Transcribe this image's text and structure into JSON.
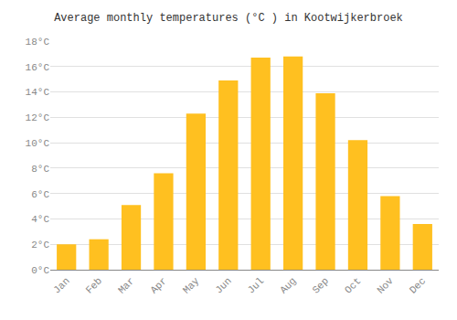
{
  "chart_data": {
    "type": "bar",
    "title": "Average monthly temperatures (°C ) in Kootwijkerbroek",
    "categories": [
      "Jan",
      "Feb",
      "Mar",
      "Apr",
      "May",
      "Jun",
      "Jul",
      "Aug",
      "Sep",
      "Oct",
      "Nov",
      "Dec"
    ],
    "values": [
      2.0,
      2.4,
      5.1,
      7.6,
      12.3,
      14.9,
      16.7,
      16.8,
      13.9,
      10.2,
      5.8,
      3.6
    ],
    "color": "#FFC020",
    "ylim": [
      0,
      18
    ],
    "yticks": [
      {
        "value": 0,
        "label": "0°C"
      },
      {
        "value": 2,
        "label": "2°C"
      },
      {
        "value": 4,
        "label": "4°C"
      },
      {
        "value": 6,
        "label": "6°C"
      },
      {
        "value": 8,
        "label": "8°C"
      },
      {
        "value": 10,
        "label": "10°C"
      },
      {
        "value": 12,
        "label": "12°C"
      },
      {
        "value": 14,
        "label": "14°C"
      },
      {
        "value": 16,
        "label": "16°C"
      },
      {
        "value": 18,
        "label": "18°C"
      }
    ],
    "grid": true
  }
}
